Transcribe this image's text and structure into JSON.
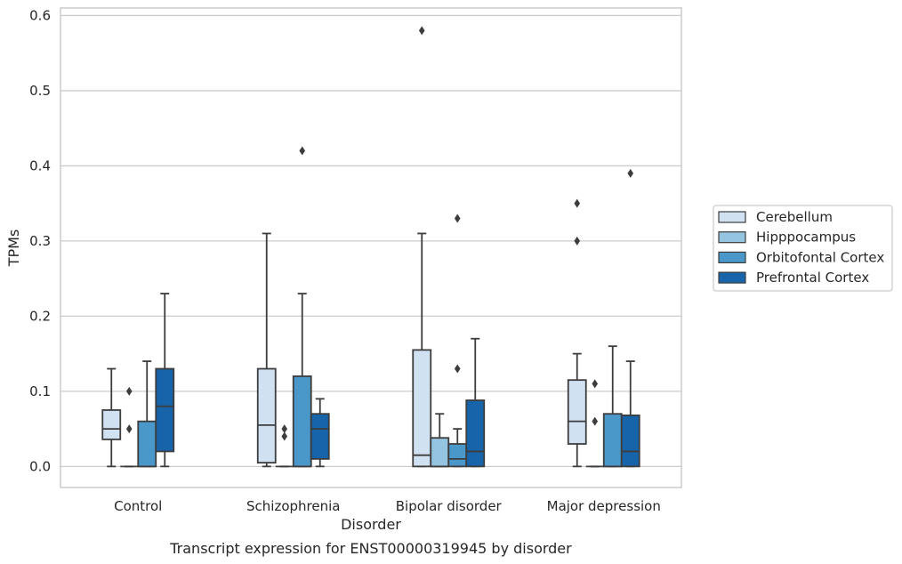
{
  "caption": "Transcript expression for ENST00000319945 by disorder",
  "chart_data": {
    "type": "box",
    "xlabel": "Disorder",
    "ylabel": "TPMs",
    "ylim": [
      -0.028,
      0.61
    ],
    "yticks": [
      "0.0",
      "0.1",
      "0.2",
      "0.3",
      "0.4",
      "0.5",
      "0.6"
    ],
    "ytick_values": [
      0.0,
      0.1,
      0.2,
      0.3,
      0.4,
      0.5,
      0.6
    ],
    "grid": "horizontal",
    "legend_position": "right",
    "categories": [
      "Control",
      "Schizophrenia",
      "Bipolar disorder",
      "Major depression"
    ],
    "series": [
      {
        "name": "Cerebellum",
        "color": "#d0e1f2",
        "boxes": [
          {
            "whisker_low": 0.0,
            "q1": 0.036,
            "median": 0.05,
            "q3": 0.075,
            "whisker_high": 0.13,
            "outliers": []
          },
          {
            "whisker_low": 0.0,
            "q1": 0.005,
            "median": 0.055,
            "q3": 0.13,
            "whisker_high": 0.31,
            "outliers": []
          },
          {
            "whisker_low": 0.0,
            "q1": 0.0,
            "median": 0.015,
            "q3": 0.155,
            "whisker_high": 0.31,
            "outliers": [
              0.58
            ]
          },
          {
            "whisker_low": 0.0,
            "q1": 0.03,
            "median": 0.06,
            "q3": 0.115,
            "whisker_high": 0.15,
            "outliers": [
              0.3,
              0.35
            ]
          }
        ]
      },
      {
        "name": "Hipppocampus",
        "color": "#94c4df",
        "boxes": [
          {
            "whisker_low": 0.0,
            "q1": 0.0,
            "median": 0.0,
            "q3": 0.0,
            "whisker_high": 0.0,
            "outliers": [
              0.05,
              0.1
            ]
          },
          {
            "whisker_low": 0.0,
            "q1": 0.0,
            "median": 0.0,
            "q3": 0.0,
            "whisker_high": 0.0,
            "outliers": [
              0.04,
              0.05
            ]
          },
          {
            "whisker_low": 0.0,
            "q1": 0.0,
            "median": 0.0,
            "q3": 0.038,
            "whisker_high": 0.07,
            "outliers": []
          },
          {
            "whisker_low": 0.0,
            "q1": 0.0,
            "median": 0.0,
            "q3": 0.0,
            "whisker_high": 0.0,
            "outliers": [
              0.06,
              0.11
            ]
          }
        ]
      },
      {
        "name": "Orbitofontal Cortex",
        "color": "#4a98c9",
        "boxes": [
          {
            "whisker_low": 0.0,
            "q1": 0.0,
            "median": 0.0,
            "q3": 0.06,
            "whisker_high": 0.14,
            "outliers": []
          },
          {
            "whisker_low": 0.0,
            "q1": 0.0,
            "median": 0.0,
            "q3": 0.12,
            "whisker_high": 0.23,
            "outliers": [
              0.42
            ]
          },
          {
            "whisker_low": 0.0,
            "q1": 0.0,
            "median": 0.01,
            "q3": 0.03,
            "whisker_high": 0.05,
            "outliers": [
              0.13,
              0.33
            ]
          },
          {
            "whisker_low": 0.0,
            "q1": 0.0,
            "median": 0.0,
            "q3": 0.07,
            "whisker_high": 0.16,
            "outliers": []
          }
        ]
      },
      {
        "name": "Prefrontal Cortex",
        "color": "#1764ab",
        "boxes": [
          {
            "whisker_low": 0.0,
            "q1": 0.02,
            "median": 0.08,
            "q3": 0.13,
            "whisker_high": 0.23,
            "outliers": []
          },
          {
            "whisker_low": 0.0,
            "q1": 0.01,
            "median": 0.05,
            "q3": 0.07,
            "whisker_high": 0.09,
            "outliers": []
          },
          {
            "whisker_low": 0.0,
            "q1": 0.0,
            "median": 0.02,
            "q3": 0.088,
            "whisker_high": 0.17,
            "outliers": []
          },
          {
            "whisker_low": 0.0,
            "q1": 0.0,
            "median": 0.02,
            "q3": 0.068,
            "whisker_high": 0.14,
            "outliers": [
              0.39
            ]
          }
        ]
      }
    ]
  }
}
